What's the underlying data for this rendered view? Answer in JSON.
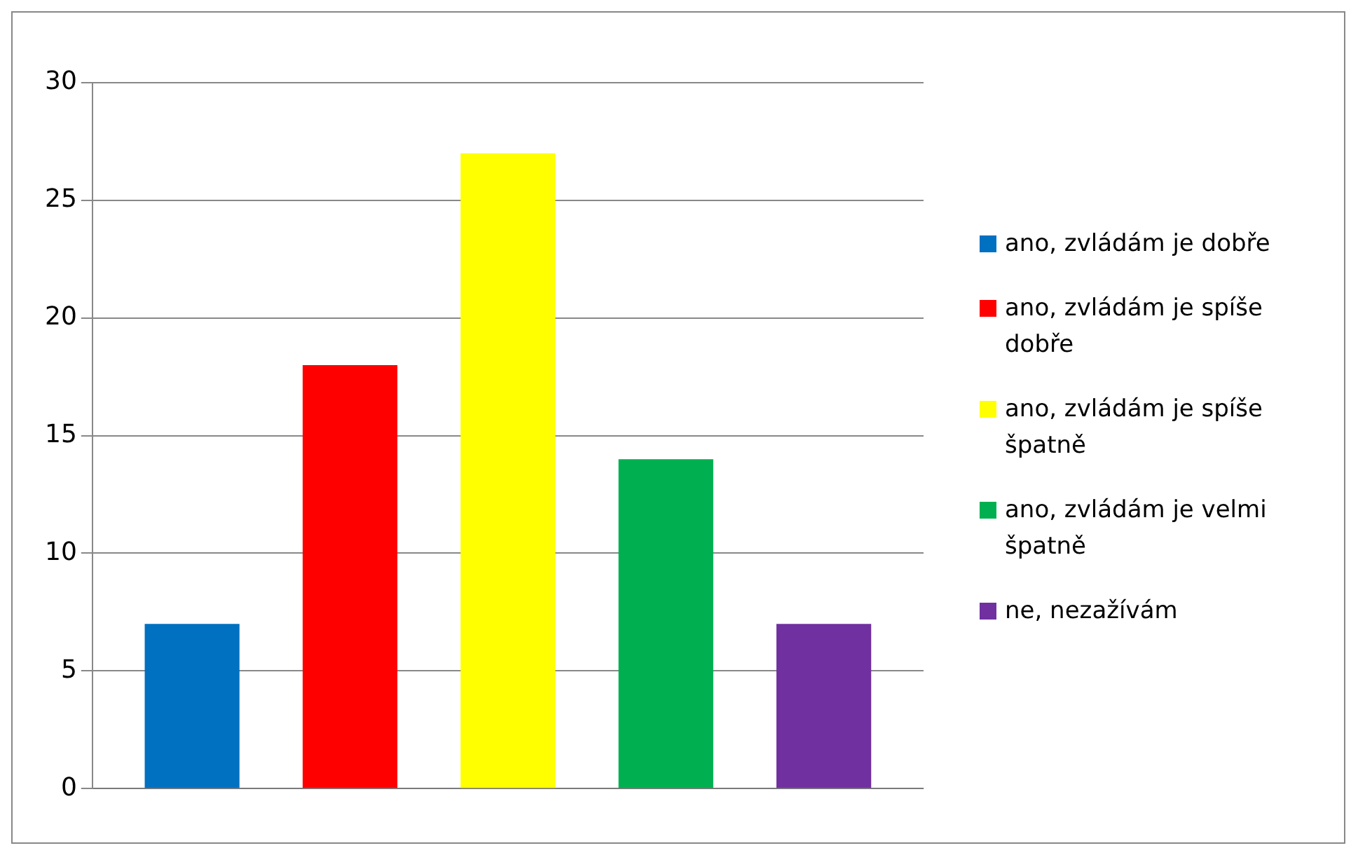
{
  "chart_data": {
    "type": "bar",
    "categories": [
      null
    ],
    "series": [
      {
        "name": "ano, zvládám je dobře",
        "color": "#0070c0",
        "values": [
          7
        ]
      },
      {
        "name": "ano, zvládám je spíše dobře",
        "color": "#ff0000",
        "values": [
          18
        ]
      },
      {
        "name": "ano, zvládám je spíše špatně",
        "color": "#ffff00",
        "values": [
          27
        ]
      },
      {
        "name": "ano, zvládám je velmi špatně",
        "color": "#00b050",
        "values": [
          14
        ]
      },
      {
        "name": "ne, nezažívám",
        "color": "#7030a0",
        "values": [
          7
        ]
      }
    ],
    "ylim": [
      0,
      30
    ],
    "yticks": [
      0,
      5,
      10,
      15,
      20,
      25,
      30
    ],
    "grid": "y",
    "legend": "right"
  }
}
